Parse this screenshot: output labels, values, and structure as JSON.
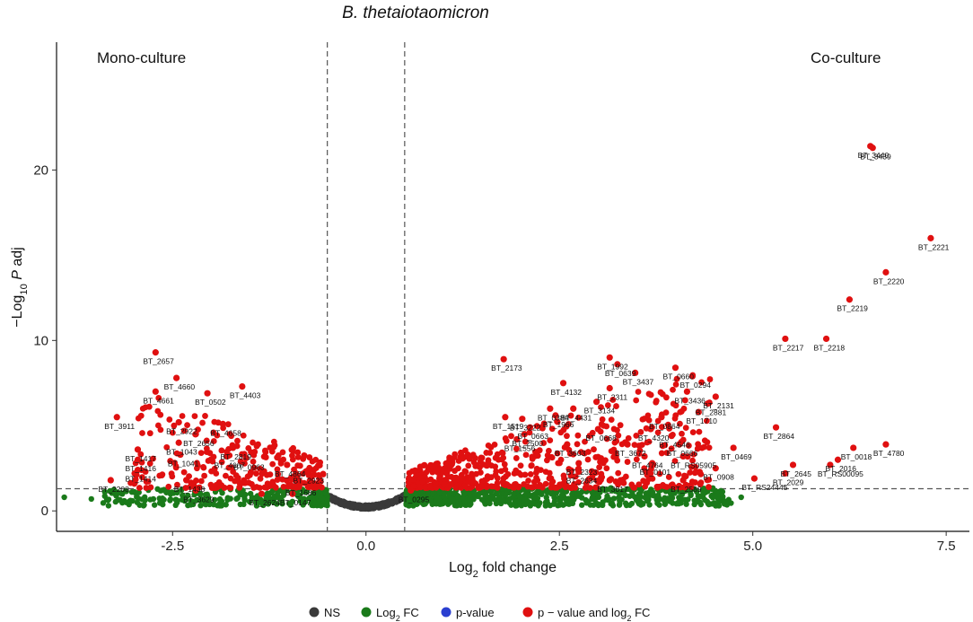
{
  "chart_data": {
    "type": "scatter",
    "title": "B. thetaiotaomicron",
    "xlabel": {
      "prefix": "Log",
      "sub": "2",
      "suffix": " fold change"
    },
    "ylabel": {
      "prefix": "−Log",
      "sub": "10",
      "italic": " P",
      "suffix": " adj"
    },
    "xlim": [
      -4.0,
      7.8
    ],
    "ylim": [
      -1.2,
      27.5
    ],
    "x_ticks": [
      -2.5,
      0,
      2.5,
      5,
      7.5
    ],
    "x_tick_labels": [
      "-2.5",
      "0.0",
      "2.5",
      "5.0",
      "7.5"
    ],
    "y_ticks": [
      0,
      10,
      20
    ],
    "y_tick_labels": [
      "0",
      "10",
      "20"
    ],
    "fc_cutoff": 0.5,
    "p_cutoff": 1.3,
    "region_labels": {
      "left": "Mono-culture",
      "right": "Co-culture"
    },
    "colors": {
      "NS": "#3a3a3a",
      "FC": "#1a7a1a",
      "P": "#2a3fd0",
      "FC_P": "#e01010"
    },
    "legend": [
      {
        "key": "NS",
        "label": "NS"
      },
      {
        "key": "FC",
        "label": "Log",
        "sub": "2",
        "suffix": " FC"
      },
      {
        "key": "P",
        "label": "p-value"
      },
      {
        "key": "FC_P",
        "label": "p − value and log",
        "sub": "2",
        "suffix": " FC"
      }
    ],
    "labeled_points": [
      {
        "gene": "BT_3439",
        "x": 6.55,
        "y": 21.3
      },
      {
        "gene": "BT_3440",
        "x": 6.52,
        "y": 21.4
      },
      {
        "gene": "BT_2221",
        "x": 7.3,
        "y": 16.0
      },
      {
        "gene": "BT_2220",
        "x": 6.72,
        "y": 14.0
      },
      {
        "gene": "BT_2219",
        "x": 6.25,
        "y": 12.4
      },
      {
        "gene": "BT_2217",
        "x": 5.42,
        "y": 10.1
      },
      {
        "gene": "BT_2218",
        "x": 5.95,
        "y": 10.1
      },
      {
        "gene": "BT_2173",
        "x": 1.78,
        "y": 8.9
      },
      {
        "gene": "BT_1992",
        "x": 3.15,
        "y": 9.0
      },
      {
        "gene": "BT_0639",
        "x": 3.25,
        "y": 8.6
      },
      {
        "gene": "BT_3437",
        "x": 3.48,
        "y": 8.1
      },
      {
        "gene": "BT_0660",
        "x": 4.0,
        "y": 8.4
      },
      {
        "gene": "BT_0294",
        "x": 4.22,
        "y": 7.9
      },
      {
        "gene": "BT_4132",
        "x": 2.55,
        "y": 7.5
      },
      {
        "gene": "BT_2311",
        "x": 3.15,
        "y": 7.2
      },
      {
        "gene": "BT_3436",
        "x": 4.15,
        "y": 7.0
      },
      {
        "gene": "BT_2131",
        "x": 4.52,
        "y": 6.7
      },
      {
        "gene": "BT_2881",
        "x": 4.42,
        "y": 6.3
      },
      {
        "gene": "BT_3134",
        "x": 2.98,
        "y": 6.4
      },
      {
        "gene": "BT_4431",
        "x": 2.68,
        "y": 6.0
      },
      {
        "gene": "BT_0384",
        "x": 2.38,
        "y": 6.0
      },
      {
        "gene": "BT_1710",
        "x": 4.3,
        "y": 5.8
      },
      {
        "gene": "BT_1966",
        "x": 2.45,
        "y": 5.6
      },
      {
        "gene": "BT_0864",
        "x": 3.82,
        "y": 5.5
      },
      {
        "gene": "BT_1519",
        "x": 1.8,
        "y": 5.5
      },
      {
        "gene": "BT_3222",
        "x": 2.02,
        "y": 5.4
      },
      {
        "gene": "BT_0663",
        "x": 2.12,
        "y": 4.9
      },
      {
        "gene": "BT_0668",
        "x": 3.0,
        "y": 4.8
      },
      {
        "gene": "BT_4320",
        "x": 3.68,
        "y": 4.8
      },
      {
        "gene": "BT_2500",
        "x": 2.05,
        "y": 4.5
      },
      {
        "gene": "BT_2864",
        "x": 5.3,
        "y": 4.9
      },
      {
        "gene": "BT_4546",
        "x": 3.95,
        "y": 4.4
      },
      {
        "gene": "BT_1556",
        "x": 1.95,
        "y": 4.2
      },
      {
        "gene": "BT_3603",
        "x": 2.6,
        "y": 3.9
      },
      {
        "gene": "BT_3672",
        "x": 3.38,
        "y": 3.9
      },
      {
        "gene": "BT_0666",
        "x": 4.05,
        "y": 3.9
      },
      {
        "gene": "BT_0469",
        "x": 4.75,
        "y": 3.7
      },
      {
        "gene": "BT_4780",
        "x": 6.72,
        "y": 3.9
      },
      {
        "gene": "BT_0018",
        "x": 6.3,
        "y": 3.7
      },
      {
        "gene": "BT_RS05905",
        "x": 4.1,
        "y": 3.2
      },
      {
        "gene": "BT_4764",
        "x": 3.6,
        "y": 3.2
      },
      {
        "gene": "BT_0101",
        "x": 3.7,
        "y": 2.8
      },
      {
        "gene": "BT_2323",
        "x": 2.75,
        "y": 2.8
      },
      {
        "gene": "BT_0908",
        "x": 4.52,
        "y": 2.5
      },
      {
        "gene": "BT_2016",
        "x": 6.1,
        "y": 3.0
      },
      {
        "gene": "BT_2645",
        "x": 5.52,
        "y": 2.7
      },
      {
        "gene": "BT_RS00095",
        "x": 6.0,
        "y": 2.7
      },
      {
        "gene": "BT_2029",
        "x": 5.42,
        "y": 2.2
      },
      {
        "gene": "BT_2634",
        "x": 2.75,
        "y": 2.3
      },
      {
        "gene": "BT_2589",
        "x": 4.1,
        "y": 1.8
      },
      {
        "gene": "BT_RS24445",
        "x": 5.02,
        "y": 1.9
      },
      {
        "gene": "BT_3017",
        "x": 3.15,
        "y": 1.8
      },
      {
        "gene": "BT_0295",
        "x": 0.58,
        "y": 1.2
      },
      {
        "gene": "BT_2657",
        "x": -2.72,
        "y": 9.3
      },
      {
        "gene": "BT_4660",
        "x": -2.45,
        "y": 7.8
      },
      {
        "gene": "BT_4661",
        "x": -2.72,
        "y": 7.0
      },
      {
        "gene": "BT_0502",
        "x": -2.05,
        "y": 6.9
      },
      {
        "gene": "BT_4403",
        "x": -1.6,
        "y": 7.3
      },
      {
        "gene": "BT_3911",
        "x": -3.22,
        "y": 5.5
      },
      {
        "gene": "BT_4658",
        "x": -1.85,
        "y": 5.1
      },
      {
        "gene": "BT_2656",
        "x": -2.2,
        "y": 4.5
      },
      {
        "gene": "BT_2922",
        "x": -2.42,
        "y": 5.2
      },
      {
        "gene": "BT_1043",
        "x": -2.42,
        "y": 4.0
      },
      {
        "gene": "BT_2819",
        "x": -1.72,
        "y": 3.7
      },
      {
        "gene": "BT_1417",
        "x": -2.95,
        "y": 3.6
      },
      {
        "gene": "BT_1416",
        "x": -2.95,
        "y": 3.0
      },
      {
        "gene": "BT_1414",
        "x": -2.95,
        "y": 2.4
      },
      {
        "gene": "BT_1041",
        "x": -2.4,
        "y": 3.3
      },
      {
        "gene": "BT_4667",
        "x": -1.8,
        "y": 3.2
      },
      {
        "gene": "BT_0963",
        "x": -1.55,
        "y": 3.1
      },
      {
        "gene": "BT_4864",
        "x": -1.02,
        "y": 2.7
      },
      {
        "gene": "BT_2923",
        "x": -0.78,
        "y": 2.3
      },
      {
        "gene": "BT_1686",
        "x": -0.88,
        "y": 1.6
      },
      {
        "gene": "BT_2208",
        "x": -3.3,
        "y": 1.8
      },
      {
        "gene": "BT_1438",
        "x": -2.32,
        "y": 1.8
      },
      {
        "gene": "BT_3629",
        "x": -2.2,
        "y": 1.2
      },
      {
        "gene": "BT_2624",
        "x": -1.35,
        "y": 1.0
      },
      {
        "gene": "BT_0147",
        "x": -0.95,
        "y": 1.0
      }
    ]
  }
}
